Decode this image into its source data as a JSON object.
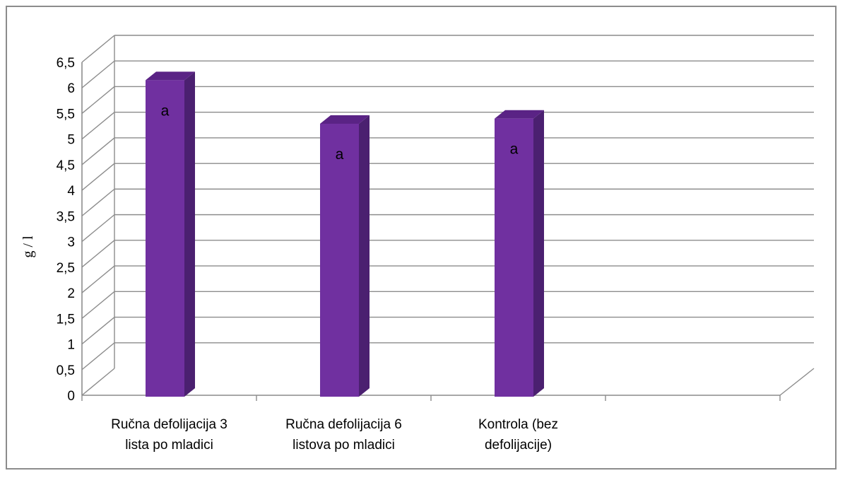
{
  "chart_data": {
    "type": "bar",
    "categories": [
      [
        "Ručna defolijacija 3",
        "lista po mladici"
      ],
      [
        "Ručna defolijacija 6",
        "listova po mladici"
      ],
      [
        "Kontrola (bez",
        "defolijacije)"
      ]
    ],
    "values": [
      6.15,
      5.3,
      5.4
    ],
    "data_labels": [
      "a",
      "a",
      "a"
    ],
    "ylabel": "g / l",
    "xlabel": "",
    "title": "",
    "ylim": [
      0,
      6.5
    ],
    "yticks": [
      "0",
      "0,5",
      "1",
      "1,5",
      "2",
      "2,5",
      "3",
      "3,5",
      "4",
      "4,5",
      "5",
      "5,5",
      "6",
      "6,5"
    ],
    "grid": true,
    "legend": "none",
    "colors": {
      "bar_front": "#7030A0",
      "bar_side": "#4B2070",
      "bar_top": "#5A2385",
      "grid": "#8c8c8c",
      "axis": "#8c8c8c"
    }
  }
}
